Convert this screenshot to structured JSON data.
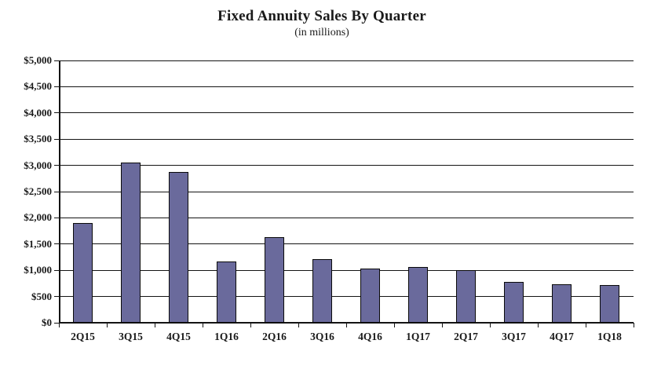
{
  "chart_data": {
    "type": "bar",
    "title": "Fixed Annuity Sales By Quarter",
    "subtitle": "(in millions)",
    "categories": [
      "2Q15",
      "3Q15",
      "4Q15",
      "1Q16",
      "2Q16",
      "3Q16",
      "4Q16",
      "1Q17",
      "2Q17",
      "3Q17",
      "4Q17",
      "1Q18"
    ],
    "values": [
      1900,
      3050,
      2870,
      1170,
      1630,
      1210,
      1030,
      1070,
      1000,
      780,
      740,
      715
    ],
    "xlabel": "",
    "ylabel": "",
    "ylim": [
      0,
      5000
    ],
    "ytick_step": 500,
    "ytick_labels": [
      "$0",
      "$500",
      "$1,000",
      "$1,500",
      "$2,000",
      "$2,500",
      "$3,000",
      "$3,500",
      "$4,000",
      "$4,500",
      "$5,000"
    ],
    "grid": true,
    "legend": "none",
    "bar_color": "#6A6A9C",
    "bar_border_color": "#0A0A0A",
    "axis_color": "#141414"
  }
}
